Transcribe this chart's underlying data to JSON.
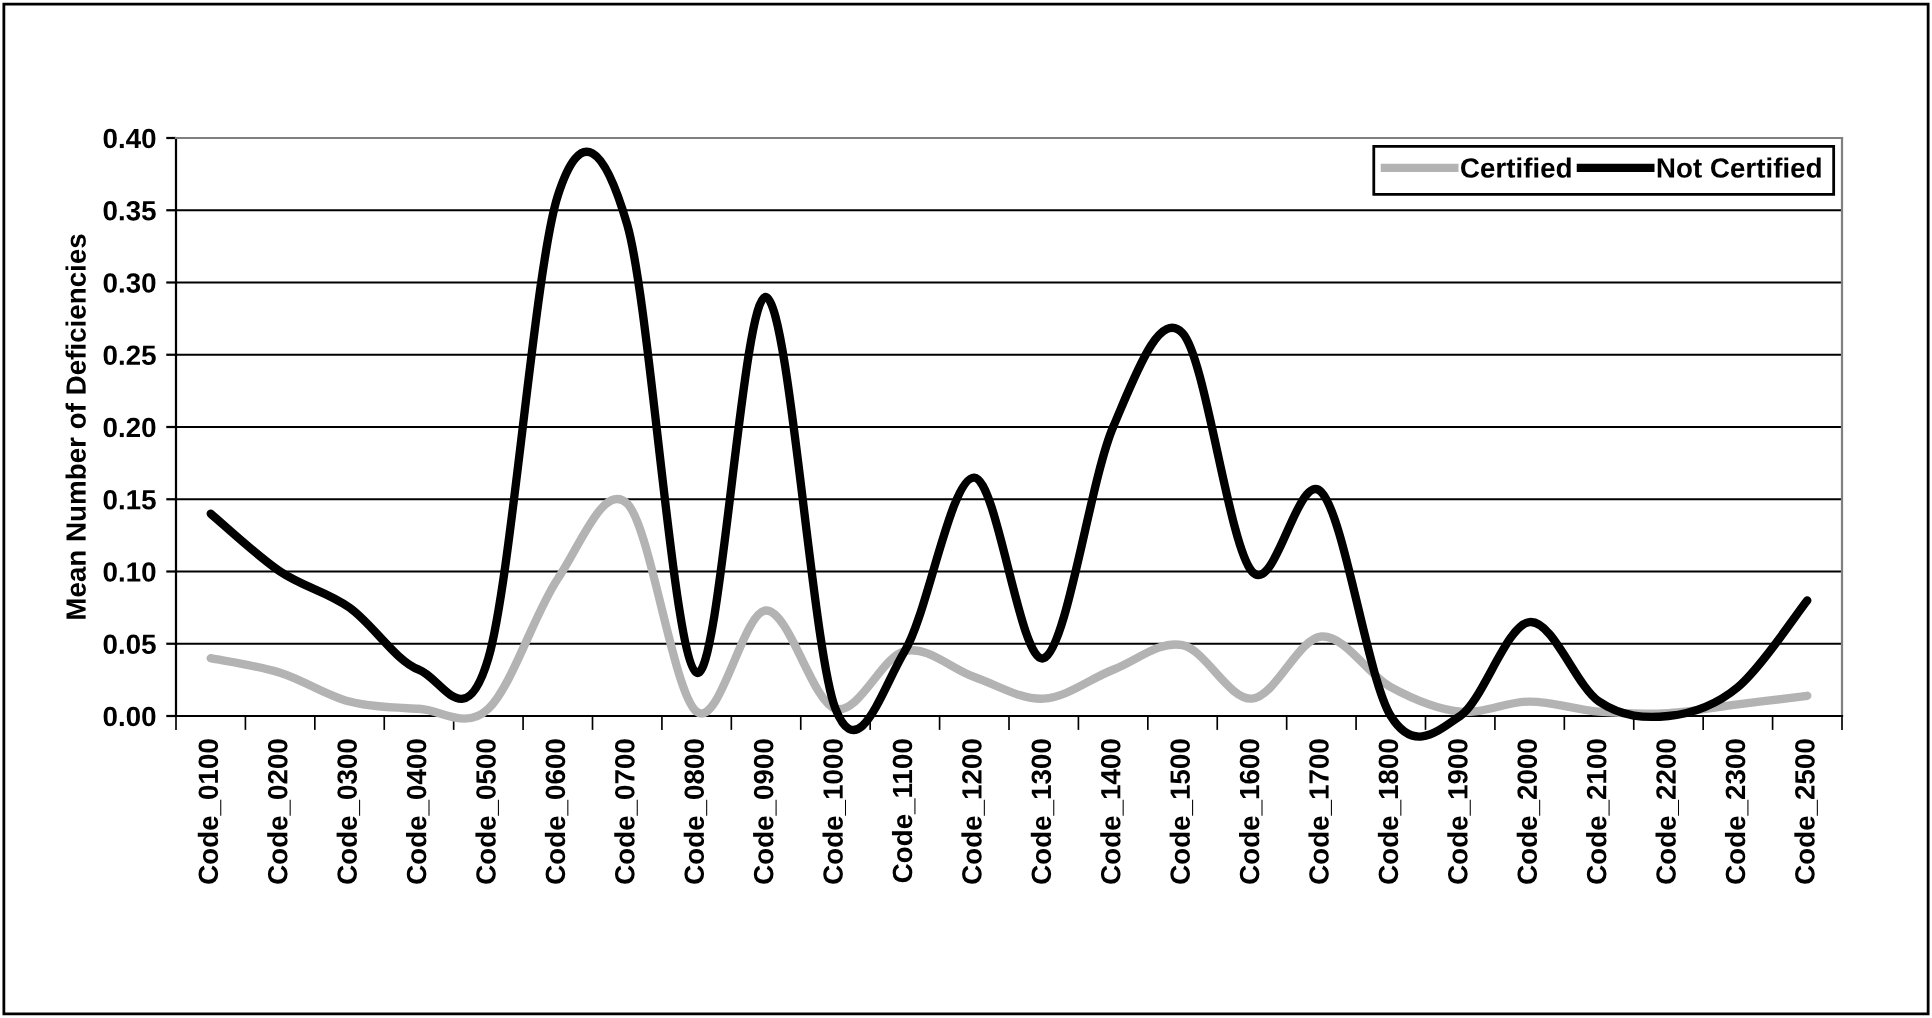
{
  "chart_data": {
    "type": "line",
    "ylabel": "Mean Number of Deficiencies",
    "categories": [
      "Code_0100",
      "Code_0200",
      "Code_0300",
      "Code_0400",
      "Code_0500",
      "Code_0600",
      "Code_0700",
      "Code_0800",
      "Code_0900",
      "Code_1000",
      "Code_1100",
      "Code_1200",
      "Code_1300",
      "Code_1400",
      "Code_1500",
      "Code_1600",
      "Code_1700",
      "Code_1800",
      "Code_1900",
      "Code_2000",
      "Code_2100",
      "Code_2200",
      "Code_2300",
      "Code_2500"
    ],
    "series": [
      {
        "name": "Certified",
        "color": "#b3b3b3",
        "values": [
          0.04,
          0.03,
          0.01,
          0.005,
          0.005,
          0.095,
          0.147,
          0.003,
          0.073,
          0.005,
          0.045,
          0.027,
          0.012,
          0.032,
          0.049,
          0.012,
          0.055,
          0.02,
          0.003,
          0.01,
          0.003,
          0.002,
          0.008,
          0.014
        ]
      },
      {
        "name": "Not Certified",
        "color": "#000000",
        "values": [
          0.14,
          0.1,
          0.075,
          0.032,
          0.04,
          0.36,
          0.34,
          0.03,
          0.29,
          0.005,
          0.045,
          0.165,
          0.04,
          0.2,
          0.265,
          0.1,
          0.155,
          0.0,
          0.0,
          0.065,
          0.01,
          0.0,
          0.02,
          0.08
        ]
      }
    ],
    "ylim": [
      0,
      0.4
    ],
    "yticks": [
      {
        "value": 0,
        "label": "0.00"
      },
      {
        "value": 0.05,
        "label": "0.05"
      },
      {
        "value": 0.1,
        "label": "0.10"
      },
      {
        "value": 0.15,
        "label": "0.15"
      },
      {
        "value": 0.2,
        "label": "0.20"
      },
      {
        "value": 0.25,
        "label": "0.25"
      },
      {
        "value": 0.3,
        "label": "0.30"
      },
      {
        "value": 0.35,
        "label": "0.35"
      },
      {
        "value": 0.4,
        "label": "0.40"
      }
    ],
    "grid": "y",
    "legend": "top right",
    "line_style": "solid",
    "marker": "none"
  }
}
